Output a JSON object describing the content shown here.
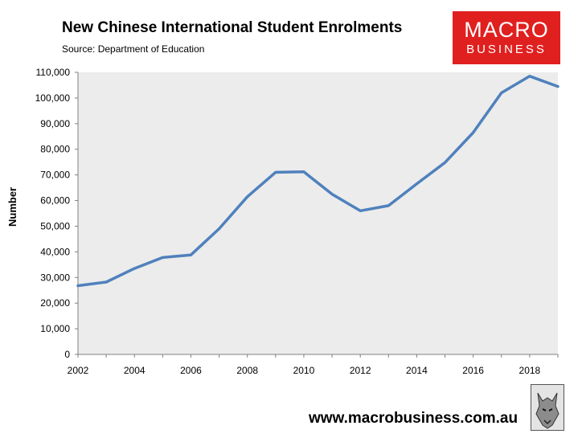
{
  "title": "New Chinese International Student Enrolments",
  "source": "Source: Department of Education",
  "logo": {
    "line1": "MACRO",
    "line2": "BUSINESS",
    "color": "#e0201f"
  },
  "website": "www.macrobusiness.com.au",
  "icons": {
    "logo": "macrobusiness-logo",
    "mascot": "wolf-icon"
  },
  "chart_data": {
    "type": "line",
    "title": "New Chinese International Student Enrolments",
    "ylabel": "Number",
    "xlabel": "",
    "x": [
      2002,
      2003,
      2004,
      2005,
      2006,
      2007,
      2008,
      2009,
      2010,
      2011,
      2012,
      2013,
      2014,
      2015,
      2016,
      2017,
      2018,
      2019
    ],
    "series": [
      {
        "values": [
          26800,
          28200,
          33500,
          37800,
          38800,
          49000,
          61500,
          71000,
          71200,
          62500,
          56000,
          58000,
          66500,
          74800,
          86500,
          102000,
          108500,
          104500
        ],
        "color": "#4f81bd"
      }
    ],
    "ylim": [
      0,
      110000
    ],
    "yticks": [
      "0",
      "10,000",
      "20,000",
      "30,000",
      "40,000",
      "50,000",
      "60,000",
      "70,000",
      "80,000",
      "90,000",
      "100,000",
      "110,000"
    ],
    "xticks": [
      "2002",
      "2004",
      "2006",
      "2008",
      "2010",
      "2012",
      "2014",
      "2016",
      "2018"
    ],
    "plot_background": "#ececec",
    "grid": false,
    "legend": "none"
  }
}
